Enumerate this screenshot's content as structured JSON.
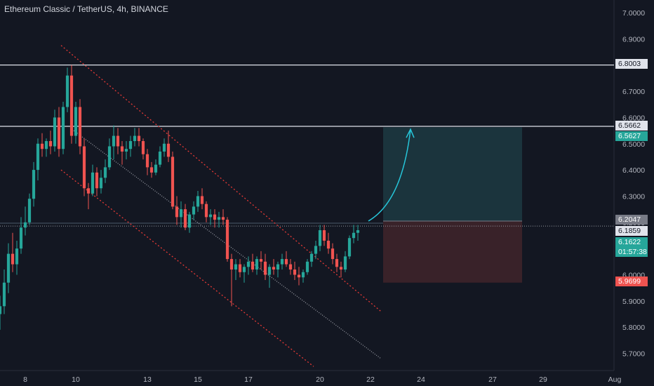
{
  "header": {
    "title": "Ethereum Classic / TetherUS, 4h, BINANCE"
  },
  "colors": {
    "background": "#131722",
    "up": "#26a69a",
    "down": "#ef5350",
    "axis_text": "#b2b5be",
    "horizontal_line": "#e0e3eb",
    "channel": "#e53935",
    "arrow": "#26c6da",
    "target_zone": "#1d3a42",
    "stop_zone": "#3e232a"
  },
  "price_tags": {
    "resistance_high": "6.8003",
    "resistance_mid": "6.5662",
    "target": "6.5627",
    "entry": "6.2047",
    "last_price": "6.1859",
    "current": "6.1622",
    "countdown": "01:57:38",
    "stop": "5.9699"
  },
  "chart_data": {
    "type": "candlestick",
    "title": "Ethereum Classic / TetherUS, 4h, BINANCE",
    "xlabel": "",
    "ylabel": "",
    "ylim": [
      5.65,
      7.03
    ],
    "y_ticks": [
      "7.0000",
      "6.9000",
      "6.8000",
      "6.7000",
      "6.6000",
      "6.5000",
      "6.4000",
      "6.3000",
      "6.2000",
      "6.1000",
      "6.0000",
      "5.9000",
      "5.8000",
      "5.7000"
    ],
    "x_ticks": [
      "8",
      "10",
      "13",
      "15",
      "17",
      "20",
      "22",
      "24",
      "27",
      "29",
      "Aug"
    ],
    "x_tick_index": [
      6,
      18,
      35,
      47,
      59,
      76,
      88,
      100,
      117,
      129,
      146
    ],
    "x_range_index": [
      -1,
      146
    ],
    "horizontal_lines": [
      6.8003,
      6.5662
    ],
    "last_price_line": 6.1859,
    "position": {
      "type": "long",
      "entry": 6.2047,
      "target": 6.5627,
      "stop": 5.9699,
      "start_index": 91,
      "end_index": 124
    },
    "ohlc": [
      [
        5.85,
        5.92,
        5.79,
        5.88
      ],
      [
        5.88,
        6.02,
        5.85,
        5.97
      ],
      [
        5.97,
        6.12,
        5.93,
        6.08
      ],
      [
        6.08,
        6.16,
        6.01,
        6.04
      ],
      [
        6.04,
        6.13,
        6.0,
        6.1
      ],
      [
        6.1,
        6.22,
        6.08,
        6.18
      ],
      [
        6.18,
        6.26,
        6.15,
        6.2
      ],
      [
        6.2,
        6.31,
        6.19,
        6.29
      ],
      [
        6.29,
        6.43,
        6.26,
        6.4
      ],
      [
        6.4,
        6.52,
        6.36,
        6.5
      ],
      [
        6.5,
        6.54,
        6.45,
        6.48
      ],
      [
        6.48,
        6.52,
        6.45,
        6.51
      ],
      [
        6.51,
        6.55,
        6.46,
        6.49
      ],
      [
        6.49,
        6.63,
        6.47,
        6.6
      ],
      [
        6.6,
        6.64,
        6.45,
        6.48
      ],
      [
        6.48,
        6.66,
        6.46,
        6.64
      ],
      [
        6.64,
        6.79,
        6.62,
        6.76
      ],
      [
        6.76,
        6.8,
        6.5,
        6.53
      ],
      [
        6.53,
        6.66,
        6.5,
        6.64
      ],
      [
        6.64,
        6.67,
        6.46,
        6.49
      ],
      [
        6.49,
        6.52,
        6.3,
        6.33
      ],
      [
        6.33,
        6.35,
        6.25,
        6.31
      ],
      [
        6.31,
        6.42,
        6.3,
        6.39
      ],
      [
        6.39,
        6.41,
        6.3,
        6.33
      ],
      [
        6.33,
        6.4,
        6.31,
        6.37
      ],
      [
        6.37,
        6.44,
        6.35,
        6.41
      ],
      [
        6.41,
        6.52,
        6.4,
        6.49
      ],
      [
        6.49,
        6.57,
        6.44,
        6.53
      ],
      [
        6.53,
        6.56,
        6.46,
        6.49
      ],
      [
        6.49,
        6.51,
        6.42,
        6.47
      ],
      [
        6.47,
        6.51,
        6.44,
        6.48
      ],
      [
        6.48,
        6.53,
        6.45,
        6.51
      ],
      [
        6.51,
        6.56,
        6.49,
        6.53
      ],
      [
        6.53,
        6.56,
        6.49,
        6.51
      ],
      [
        6.51,
        6.52,
        6.44,
        6.46
      ],
      [
        6.46,
        6.48,
        6.38,
        6.41
      ],
      [
        6.41,
        6.43,
        6.37,
        6.39
      ],
      [
        6.39,
        6.44,
        6.38,
        6.42
      ],
      [
        6.42,
        6.49,
        6.41,
        6.47
      ],
      [
        6.47,
        6.52,
        6.45,
        6.5
      ],
      [
        6.5,
        6.55,
        6.43,
        6.45
      ],
      [
        6.45,
        6.47,
        6.25,
        6.26
      ],
      [
        6.26,
        6.3,
        6.19,
        6.22
      ],
      [
        6.22,
        6.28,
        6.18,
        6.25
      ],
      [
        6.25,
        6.27,
        6.17,
        6.18
      ],
      [
        6.18,
        6.24,
        6.16,
        6.23
      ],
      [
        6.23,
        6.28,
        6.21,
        6.26
      ],
      [
        6.26,
        6.32,
        6.24,
        6.3
      ],
      [
        6.3,
        6.33,
        6.25,
        6.27
      ],
      [
        6.27,
        6.28,
        6.2,
        6.22
      ],
      [
        6.22,
        6.25,
        6.19,
        6.23
      ],
      [
        6.23,
        6.25,
        6.18,
        6.21
      ],
      [
        6.21,
        6.24,
        6.18,
        6.22
      ],
      [
        6.22,
        6.25,
        6.19,
        6.21
      ],
      [
        6.21,
        6.22,
        6.05,
        6.06
      ],
      [
        6.06,
        6.08,
        5.88,
        6.02
      ],
      [
        6.02,
        6.06,
        5.98,
        6.04
      ],
      [
        6.04,
        6.06,
        5.99,
        6.01
      ],
      [
        6.01,
        6.04,
        5.97,
        6.03
      ],
      [
        6.03,
        6.07,
        6.0,
        6.05
      ],
      [
        6.05,
        6.08,
        6.01,
        6.02
      ],
      [
        6.02,
        6.07,
        6.0,
        6.06
      ],
      [
        6.06,
        6.09,
        6.02,
        6.05
      ],
      [
        6.05,
        6.08,
        5.98,
        6.0
      ],
      [
        6.0,
        6.04,
        5.95,
        6.03
      ],
      [
        6.03,
        6.06,
        6.0,
        6.02
      ],
      [
        6.02,
        6.05,
        5.99,
        6.04
      ],
      [
        6.04,
        6.08,
        6.02,
        6.06
      ],
      [
        6.06,
        6.09,
        6.03,
        6.04
      ],
      [
        6.04,
        6.06,
        6.0,
        6.02
      ],
      [
        6.02,
        6.05,
        5.98,
        6.0
      ],
      [
        6.0,
        6.03,
        5.96,
        5.99
      ],
      [
        5.99,
        6.02,
        5.97,
        6.01
      ],
      [
        6.01,
        6.06,
        6.0,
        6.05
      ],
      [
        6.05,
        6.09,
        6.03,
        6.08
      ],
      [
        6.08,
        6.13,
        6.06,
        6.11
      ],
      [
        6.11,
        6.19,
        6.09,
        6.17
      ],
      [
        6.17,
        6.19,
        6.11,
        6.13
      ],
      [
        6.13,
        6.16,
        6.08,
        6.1
      ],
      [
        6.1,
        6.12,
        6.04,
        6.06
      ],
      [
        6.06,
        6.08,
        6.01,
        6.03
      ],
      [
        6.03,
        6.05,
        5.99,
        6.02
      ],
      [
        6.02,
        6.09,
        6.01,
        6.07
      ],
      [
        6.07,
        6.15,
        6.06,
        6.14
      ],
      [
        6.14,
        6.19,
        6.12,
        6.16
      ],
      [
        6.16,
        6.19,
        6.13,
        6.17
      ]
    ]
  }
}
